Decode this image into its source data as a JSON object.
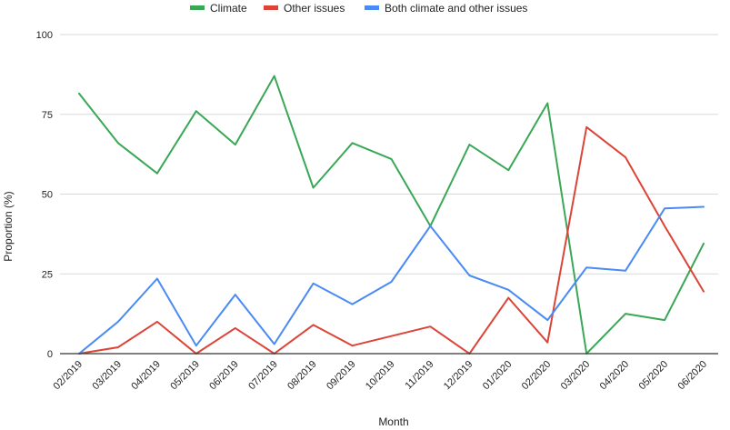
{
  "chart_data": {
    "type": "line",
    "xlabel": "Month",
    "ylabel": "Proportion (%)",
    "ylim": [
      0,
      100
    ],
    "yticks": [
      0,
      25,
      50,
      75,
      100
    ],
    "grid": true,
    "legend_position": "top",
    "categories": [
      "02/2019",
      "03/2019",
      "04/2019",
      "05/2019",
      "06/2019",
      "07/2019",
      "08/2019",
      "09/2019",
      "10/2019",
      "11/2019",
      "12/2019",
      "01/2020",
      "02/2020",
      "03/2020",
      "04/2020",
      "05/2020",
      "06/2020"
    ],
    "series": [
      {
        "name": "Climate",
        "color": "#3aa757",
        "values": [
          81.5,
          66,
          56.5,
          76,
          65.5,
          87,
          52,
          66,
          61,
          40,
          65.5,
          57.5,
          78.5,
          0,
          12.5,
          10.5,
          34.5
        ]
      },
      {
        "name": "Other issues",
        "color": "#db4437",
        "values": [
          0,
          2,
          10,
          0,
          8,
          0,
          9,
          2.5,
          5.5,
          8.5,
          0,
          17.5,
          3.5,
          71,
          61.5,
          40,
          19.5
        ]
      },
      {
        "name": "Both climate and other issues",
        "color": "#4a8af4",
        "values": [
          0,
          10,
          23.5,
          2.5,
          18.5,
          3,
          22,
          15.5,
          22.5,
          40,
          24.5,
          20,
          10.5,
          27,
          26,
          45.5,
          46
        ]
      }
    ]
  }
}
